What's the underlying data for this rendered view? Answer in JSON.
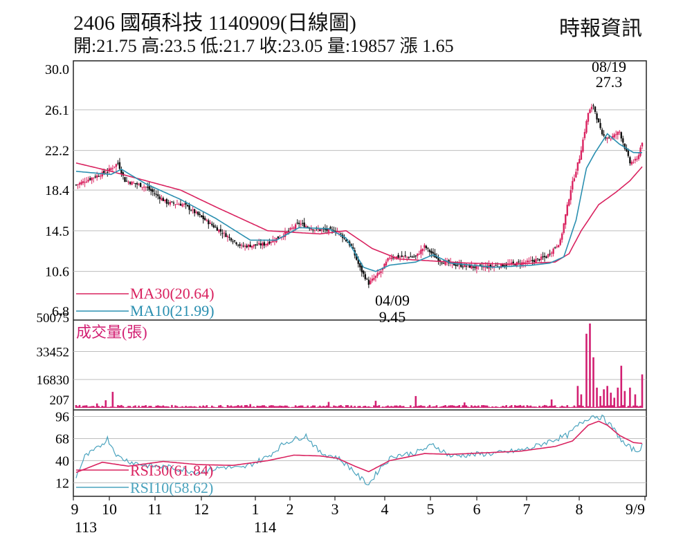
{
  "header": {
    "title": "2406 國碩科技 1140909(日線圖)",
    "quote_line": "開:21.75 高:23.5 低:21.7 收:23.05 量:19857 漲 1.65",
    "source": "時報資訊"
  },
  "colors": {
    "up": "#d9225f",
    "down": "#111111",
    "ma30": "#d9225f",
    "ma10": "#2a8fb0",
    "rsi30": "#d9225f",
    "rsi10": "#4aa3be",
    "volume": "#d21f72",
    "grid": "#bdbdbd"
  },
  "chart_data": [
    {
      "type": "line",
      "name": "price",
      "yticks": [
        "30.0",
        "26.1",
        "22.2",
        "18.4",
        "14.5",
        "10.6",
        "6.8"
      ],
      "ylim": [
        6.8,
        30.0
      ],
      "annotations": [
        {
          "date": "08/19",
          "value": "27.3"
        },
        {
          "date": "04/09",
          "value": "9.45"
        }
      ],
      "legend": [
        "MA30(20.64)",
        "MA10(21.99)"
      ],
      "x_month_labels": [
        "9",
        "10",
        "11",
        "12",
        "1",
        "2",
        "3",
        "4",
        "5",
        "6",
        "7",
        "8",
        "9/9"
      ],
      "x_year_labels": [
        "113",
        "114"
      ],
      "close_anchors": [
        [
          0,
          18.9
        ],
        [
          8,
          19.5
        ],
        [
          18,
          20.2
        ],
        [
          24,
          21.0
        ],
        [
          28,
          19.3
        ],
        [
          40,
          18.7
        ],
        [
          52,
          17.2
        ],
        [
          62,
          17.0
        ],
        [
          80,
          14.8
        ],
        [
          95,
          13.0
        ],
        [
          108,
          13.2
        ],
        [
          118,
          14.0
        ],
        [
          128,
          15.2
        ],
        [
          138,
          14.6
        ],
        [
          150,
          14.5
        ],
        [
          158,
          13.0
        ],
        [
          163,
          10.9
        ],
        [
          168,
          9.45
        ],
        [
          175,
          10.6
        ],
        [
          180,
          12.0
        ],
        [
          195,
          12.0
        ],
        [
          200,
          13.0
        ],
        [
          208,
          11.7
        ],
        [
          215,
          11.3
        ],
        [
          230,
          11.0
        ],
        [
          245,
          11.2
        ],
        [
          260,
          11.5
        ],
        [
          270,
          12.0
        ],
        [
          278,
          13.5
        ],
        [
          284,
          18.5
        ],
        [
          289,
          21.5
        ],
        [
          294,
          25.8
        ],
        [
          297,
          26.5
        ],
        [
          302,
          23.6
        ],
        [
          307,
          23.4
        ],
        [
          312,
          24.0
        ],
        [
          318,
          21.0
        ],
        [
          322,
          21.3
        ],
        [
          325,
          23.05
        ]
      ],
      "ma30_anchors": [
        [
          0,
          21.0
        ],
        [
          20,
          20.2
        ],
        [
          40,
          19.3
        ],
        [
          60,
          18.4
        ],
        [
          80,
          16.8
        ],
        [
          110,
          14.5
        ],
        [
          140,
          14.2
        ],
        [
          155,
          14.5
        ],
        [
          170,
          12.8
        ],
        [
          185,
          11.8
        ],
        [
          205,
          11.6
        ],
        [
          225,
          11.4
        ],
        [
          250,
          11.3
        ],
        [
          275,
          11.5
        ],
        [
          283,
          12.3
        ],
        [
          290,
          14.5
        ],
        [
          300,
          17.0
        ],
        [
          310,
          18.2
        ],
        [
          318,
          19.3
        ],
        [
          325,
          20.64
        ]
      ],
      "ma10_anchors": [
        [
          0,
          20.2
        ],
        [
          20,
          19.9
        ],
        [
          26,
          20.4
        ],
        [
          40,
          19.0
        ],
        [
          60,
          17.5
        ],
        [
          80,
          15.7
        ],
        [
          100,
          13.6
        ],
        [
          115,
          13.6
        ],
        [
          128,
          14.8
        ],
        [
          145,
          14.7
        ],
        [
          155,
          13.8
        ],
        [
          165,
          11.0
        ],
        [
          172,
          10.6
        ],
        [
          180,
          11.2
        ],
        [
          195,
          11.5
        ],
        [
          205,
          12.2
        ],
        [
          215,
          11.4
        ],
        [
          240,
          11.0
        ],
        [
          262,
          11.2
        ],
        [
          272,
          11.4
        ],
        [
          280,
          12.0
        ],
        [
          287,
          15.5
        ],
        [
          293,
          20.5
        ],
        [
          298,
          22.0
        ],
        [
          305,
          23.8
        ],
        [
          312,
          22.8
        ],
        [
          320,
          22.0
        ],
        [
          325,
          21.99
        ]
      ]
    },
    {
      "type": "bar",
      "name": "volume",
      "title": "成交量(張)",
      "yticks": [
        "50075",
        "33452",
        "16830",
        "207"
      ],
      "ylim": [
        207,
        50075
      ],
      "spikes": [
        [
          12,
          2600
        ],
        [
          17,
          4500
        ],
        [
          21,
          9500
        ],
        [
          100,
          2200
        ],
        [
          145,
          3500
        ],
        [
          172,
          4200
        ],
        [
          195,
          7000
        ],
        [
          223,
          3200
        ],
        [
          273,
          5000
        ],
        [
          288,
          13000
        ],
        [
          290,
          8000
        ],
        [
          293,
          44000
        ],
        [
          295,
          50075
        ],
        [
          297,
          30000
        ],
        [
          299,
          12000
        ],
        [
          301,
          7000
        ],
        [
          303,
          11000
        ],
        [
          305,
          13000
        ],
        [
          307,
          9000
        ],
        [
          309,
          6000
        ],
        [
          311,
          12000
        ],
        [
          313,
          25000
        ],
        [
          315,
          10000
        ],
        [
          318,
          12000
        ],
        [
          321,
          8000
        ],
        [
          325,
          19857
        ]
      ]
    },
    {
      "type": "line",
      "name": "rsi",
      "yticks": [
        "96",
        "68",
        "40",
        "12"
      ],
      "ylim": [
        0,
        100
      ],
      "legend": [
        "RSI30(61.84)",
        "RSI10(58.62)"
      ],
      "rsi30_anchors": [
        [
          0,
          25
        ],
        [
          15,
          38
        ],
        [
          30,
          33
        ],
        [
          50,
          39
        ],
        [
          70,
          35
        ],
        [
          90,
          34
        ],
        [
          110,
          40
        ],
        [
          125,
          47
        ],
        [
          140,
          46
        ],
        [
          150,
          43
        ],
        [
          160,
          33
        ],
        [
          168,
          26
        ],
        [
          180,
          40
        ],
        [
          200,
          49
        ],
        [
          215,
          48
        ],
        [
          235,
          50
        ],
        [
          255,
          52
        ],
        [
          275,
          58
        ],
        [
          285,
          65
        ],
        [
          294,
          85
        ],
        [
          300,
          90
        ],
        [
          305,
          85
        ],
        [
          312,
          72
        ],
        [
          320,
          63
        ],
        [
          325,
          61.84
        ]
      ],
      "rsi10_anchors": [
        [
          0,
          20
        ],
        [
          5,
          45
        ],
        [
          12,
          55
        ],
        [
          18,
          68
        ],
        [
          24,
          45
        ],
        [
          32,
          38
        ],
        [
          40,
          34
        ],
        [
          55,
          31
        ],
        [
          70,
          25
        ],
        [
          85,
          32
        ],
        [
          95,
          30
        ],
        [
          110,
          45
        ],
        [
          120,
          63
        ],
        [
          132,
          72
        ],
        [
          140,
          50
        ],
        [
          150,
          44
        ],
        [
          158,
          30
        ],
        [
          163,
          18
        ],
        [
          168,
          10
        ],
        [
          175,
          32
        ],
        [
          182,
          46
        ],
        [
          195,
          50
        ],
        [
          205,
          60
        ],
        [
          215,
          46
        ],
        [
          230,
          48
        ],
        [
          245,
          50
        ],
        [
          260,
          55
        ],
        [
          272,
          65
        ],
        [
          282,
          72
        ],
        [
          290,
          88
        ],
        [
          296,
          97
        ],
        [
          302,
          95
        ],
        [
          308,
          82
        ],
        [
          315,
          60
        ],
        [
          322,
          52
        ],
        [
          325,
          58.62
        ]
      ]
    }
  ]
}
